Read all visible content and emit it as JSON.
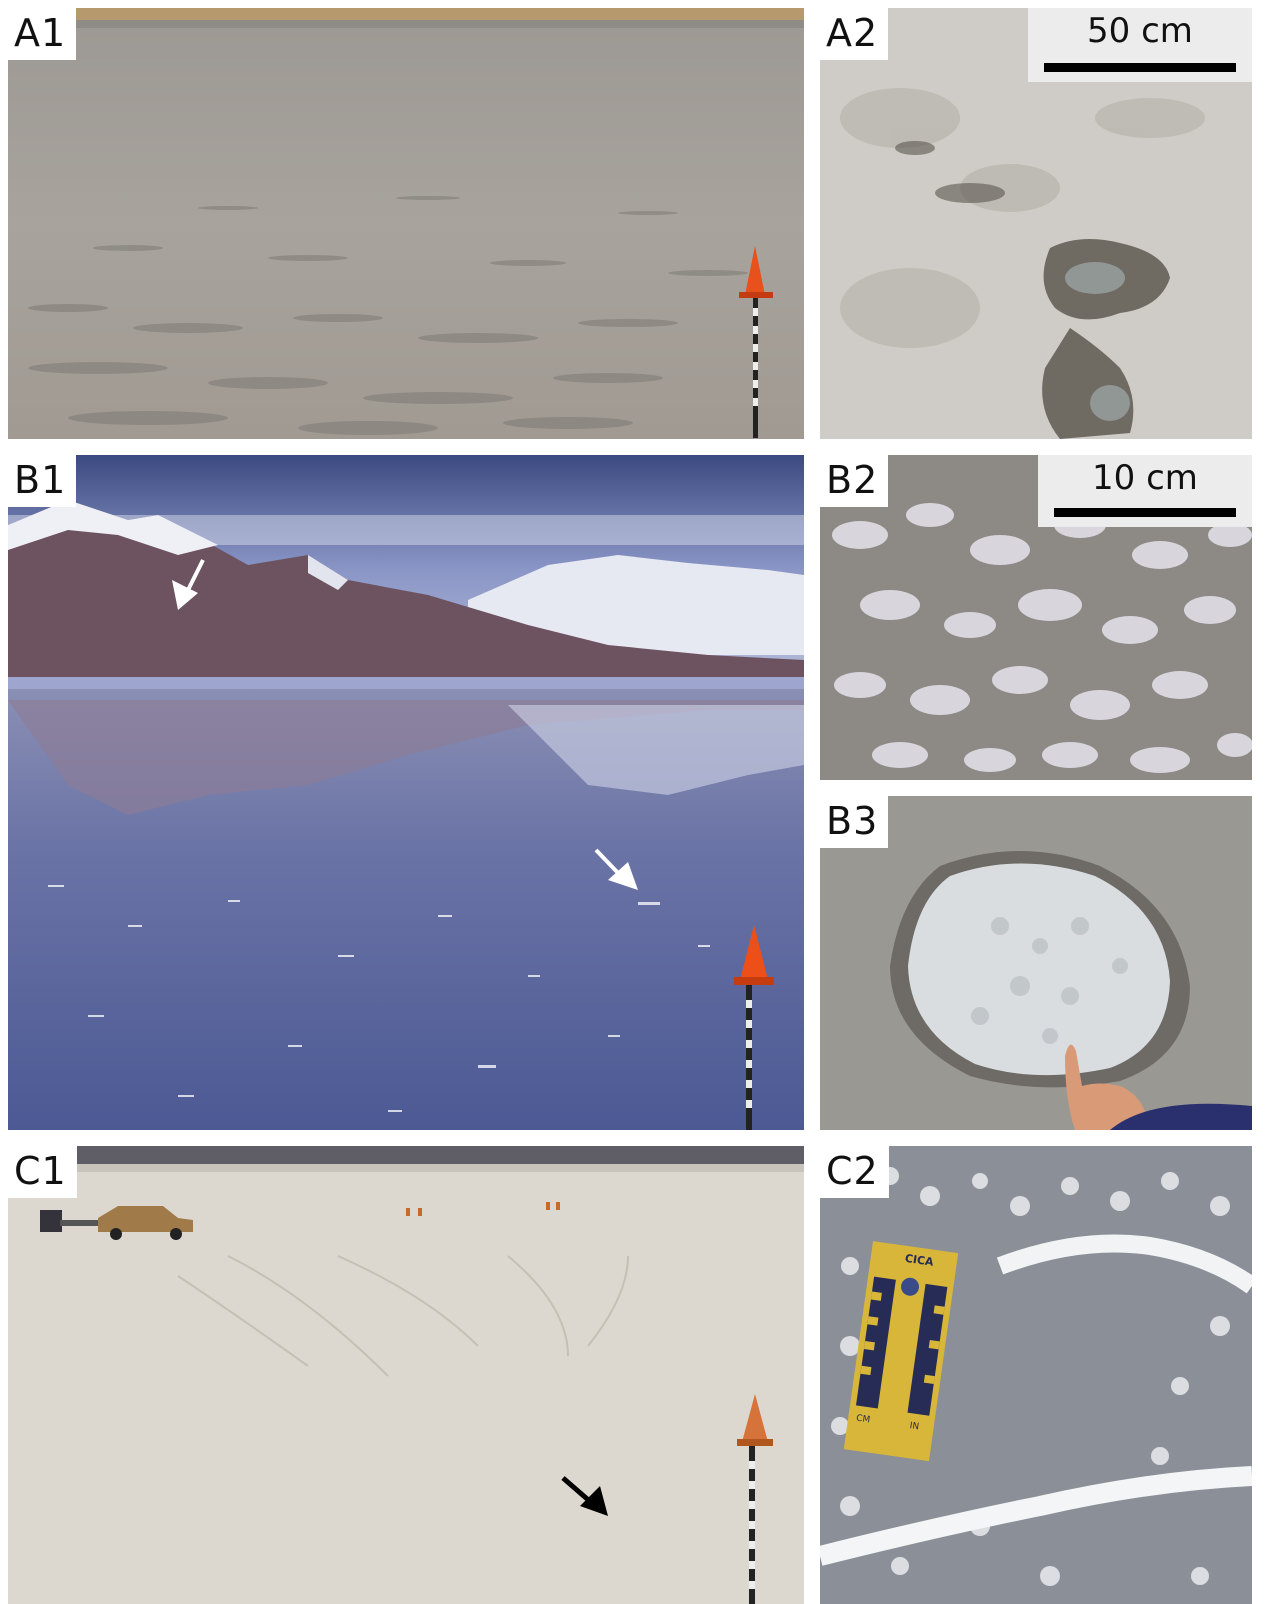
{
  "panels": {
    "a1": {
      "label": "A1"
    },
    "a2": {
      "label": "A2",
      "scale_bar": "50 cm"
    },
    "b1": {
      "label": "B1"
    },
    "b2": {
      "label": "B2",
      "scale_bar": "10 cm"
    },
    "b3": {
      "label": "B3"
    },
    "c1": {
      "label": "C1"
    },
    "c2": {
      "label": "C2"
    }
  },
  "ruler_card": {
    "brand": "CICA",
    "left_unit": "CM",
    "right_unit": "IN"
  },
  "colors": {
    "brine_gray": "#9a958f",
    "salt_white": "#e8e6e2",
    "sky_blue": "#5a6b9e",
    "cone_orange": "#e8501c",
    "ruler_yellow": "#d8b63a"
  }
}
